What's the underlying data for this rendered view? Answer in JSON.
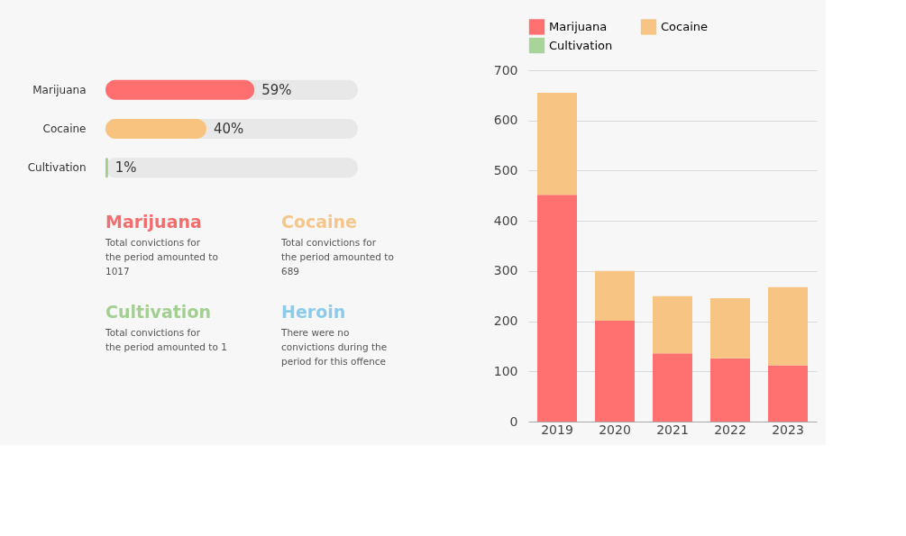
{
  "chart_data": [
    {
      "type": "bar",
      "orientation": "horizontal",
      "categories": [
        "Marijuana",
        "Cocaine",
        "Cultivation"
      ],
      "values": [
        59,
        40,
        1
      ],
      "colors": [
        "#ff6f6f",
        "#f7c37f",
        "#9fd08a"
      ],
      "value_labels": [
        "59%",
        "40%",
        "1%"
      ],
      "tick_labels": "y",
      "grid": false,
      "legend": false
    },
    {
      "type": "other",
      "categories": [
        "Marijuana",
        "Cocaine",
        "Cultivation",
        "Heroin"
      ],
      "colors": [
        "#f26d6d",
        "#f5c68c",
        "#a3cf92",
        "#8ccbec"
      ],
      "annotations": [
        "Total convictions for the period amounted to 1017",
        "Total convictions for the period amounted to 689",
        "Total convictions for the period amounted to 1",
        "There were no convictions during the period for this offence"
      ]
    },
    {
      "type": "bar",
      "stacked": true,
      "categories": [
        "2019",
        "2020",
        "2021",
        "2022",
        "2023"
      ],
      "series": [
        {
          "name": "Marijuana",
          "color": "#ff7070",
          "values": [
            452,
            201,
            136,
            126,
            112
          ]
        },
        {
          "name": "Cocaine",
          "color": "#f7c483",
          "values": [
            203,
            99,
            114,
            120,
            156
          ]
        },
        {
          "name": "Cultivation",
          "color": "#a8d49a",
          "values": [
            null,
            null,
            null,
            null,
            null
          ]
        }
      ],
      "ylim": [
        0,
        700
      ],
      "yticks": [
        0,
        100,
        200,
        300,
        400,
        500,
        600,
        700
      ],
      "grid": "y",
      "legend": "top"
    }
  ]
}
